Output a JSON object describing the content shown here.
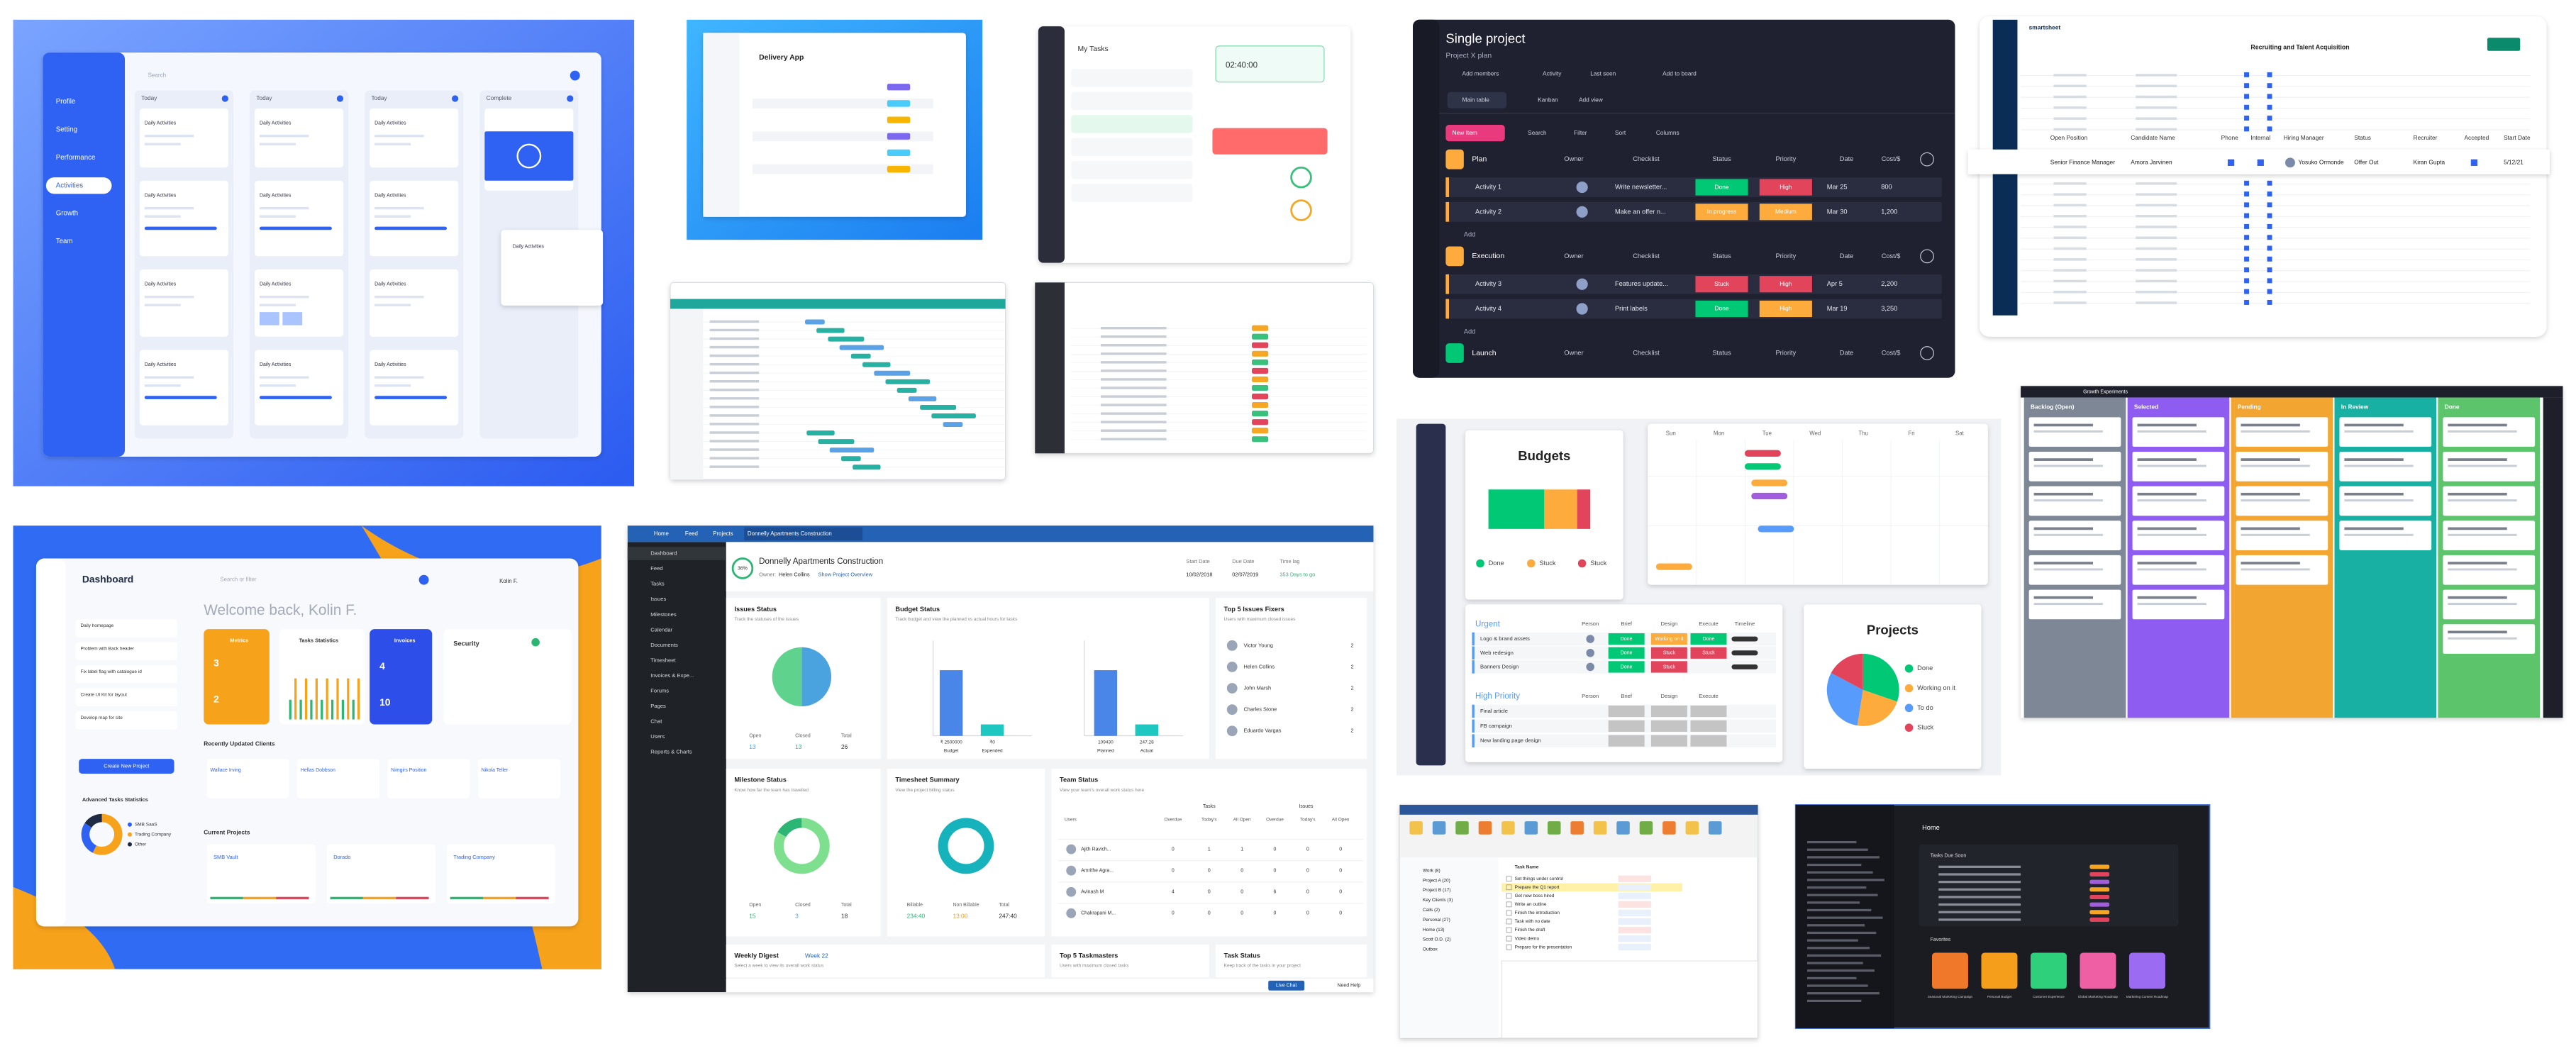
{
  "activities_board": {
    "search": "Search",
    "menu": [
      "Profile",
      "Setting",
      "Performance",
      "Activities",
      "Growth",
      "Team"
    ],
    "columns": [
      "Today",
      "Today",
      "Today",
      "Complete"
    ],
    "card_title": "Daily Activities"
  },
  "delivery_app": {
    "title": "Delivery App"
  },
  "my_tasks": {
    "title": "My Tasks",
    "timer": "02:40:00"
  },
  "single_project": {
    "title": "Single project",
    "subtitle": "Project X plan",
    "toolbar": [
      "Add members",
      "Activity",
      "Last seen",
      "Add to board"
    ],
    "views": [
      "Main table",
      "Kanban",
      "Add view"
    ],
    "actions": [
      "New Item",
      "Search",
      "Filter",
      "Sort",
      "Columns"
    ],
    "columns": [
      "Owner",
      "Checklist",
      "Status",
      "Priority",
      "Date",
      "Cost/$"
    ],
    "add": "Add",
    "groups": [
      {
        "name": "Plan",
        "color": "#fdab3d",
        "rows": [
          {
            "name": "Activity 1",
            "checklist": "Write newsletter...",
            "status": "Done",
            "status_color": "#00c875",
            "priority": "High",
            "priority_color": "#e2445c",
            "date": "Mar 25",
            "cost": "800"
          },
          {
            "name": "Activity 2",
            "checklist": "Make an offer n...",
            "status": "In progress",
            "status_color": "#fdab3d",
            "priority": "Medium",
            "priority_color": "#fdab3d",
            "date": "Mar 30",
            "cost": "1,200"
          }
        ]
      },
      {
        "name": "Execution",
        "color": "#fdab3d",
        "rows": [
          {
            "name": "Activity 3",
            "checklist": "Features update...",
            "status": "Stuck",
            "status_color": "#e2445c",
            "priority": "High",
            "priority_color": "#e2445c",
            "date": "Apr 5",
            "cost": "2,200"
          },
          {
            "name": "Activity 4",
            "checklist": "Print labels",
            "status": "Done",
            "status_color": "#00c875",
            "priority": "High",
            "priority_color": "#fdab3d",
            "date": "Mar 19",
            "cost": "3,250"
          }
        ]
      },
      {
        "name": "Launch",
        "color": "#00c875",
        "rows": []
      }
    ]
  },
  "smartsheet": {
    "brand": "smartsheet",
    "sheet": "Recruiting and Talent Acquisition",
    "columns": [
      "Open Position",
      "Candidate Name",
      "Phone",
      "Internal",
      "Hiring Manager",
      "Status",
      "Recruiter",
      "Accepted",
      "Start Date"
    ],
    "row": {
      "open_position": "Senior Finance Manager",
      "candidate": "Amora Jarvinen",
      "hiring_manager": "Yosuko Ormonde",
      "status": "Offer Out",
      "recruiter": "Kiran Gupta",
      "start_date": "5/12/21"
    }
  },
  "workspace": {
    "budgets": {
      "title": "Budgets",
      "legend": [
        {
          "label": "Done",
          "color": "#00c875"
        },
        {
          "label": "Stuck",
          "color": "#fdab3d"
        },
        {
          "label": "Stuck",
          "color": "#e2445c"
        }
      ]
    },
    "calendar_days": [
      "Sun",
      "Mon",
      "Tue",
      "Wed",
      "Thu",
      "Fri",
      "Sat"
    ],
    "urgent": {
      "title": "Urgent",
      "columns": [
        "Person",
        "Brief",
        "Design",
        "Execute",
        "Timeline"
      ],
      "rows": [
        {
          "name": "Logo & brand assets",
          "cells": [
            {
              "text": "Done",
              "color": "#00c875"
            },
            {
              "text": "Working on it",
              "color": "#fdab3d"
            },
            {
              "text": "Done",
              "color": "#00c875"
            }
          ]
        },
        {
          "name": "Web redesign",
          "cells": [
            {
              "text": "Done",
              "color": "#00c875"
            },
            {
              "text": "Stuck",
              "color": "#e2445c"
            },
            {
              "text": "Stuck",
              "color": "#e2445c"
            }
          ]
        },
        {
          "name": "Banners Design",
          "cells": [
            {
              "text": "Done",
              "color": "#00c875"
            },
            {
              "text": "Stuck",
              "color": "#e2445c"
            }
          ]
        }
      ]
    },
    "high_priority": {
      "title": "High Priority",
      "columns": [
        "Person",
        "Brief",
        "Design",
        "Execute"
      ],
      "rows": [
        "Final article",
        "FB campaign",
        "New landing page design"
      ]
    },
    "projects": {
      "title": "Projects",
      "legend": [
        {
          "label": "Done",
          "color": "#00c875"
        },
        {
          "label": "Working on it",
          "color": "#fdab3d"
        },
        {
          "label": "To do",
          "color": "#579bfc"
        },
        {
          "label": "Stuck",
          "color": "#e2445c"
        }
      ]
    }
  },
  "kanban": {
    "board": "Growth Experiments",
    "columns": [
      {
        "name": "Backlog (Open)",
        "color": "#7d8796"
      },
      {
        "name": "Selected",
        "color": "#8e5cf0"
      },
      {
        "name": "Pending",
        "color": "#f2a531"
      },
      {
        "name": "In Review",
        "color": "#17b0a3"
      },
      {
        "name": "Done",
        "color": "#5cc46b"
      }
    ]
  },
  "dashboard": {
    "title": "Dashboard",
    "search": "Search or filter",
    "welcome": "Welcome back, Kolin F.",
    "user": "Kolin F.",
    "tasks": [
      "Daily homepage",
      "Problem with Back header",
      "Fix label flag with catalogue id",
      "Create UI Kit for layout",
      "Develop map for site"
    ],
    "create": "Create New Project",
    "widgets": {
      "metrics": "Metrics",
      "metric_values": [
        "3",
        "2"
      ],
      "tasks_statistics": "Tasks Statistics",
      "invoices": "Invoices",
      "invoice_values": [
        "4",
        "10"
      ],
      "security": "Security"
    },
    "recent": "Recently Updated Clients",
    "clients": [
      "Wallace Irving",
      "Hellas Dobbson",
      "Nimgirs Position",
      "Nikola Teller"
    ],
    "advanced": "Advanced Tasks Statistics",
    "legend": [
      "SMB SaaS",
      "Trading Company",
      "Other"
    ],
    "current": "Current Projects",
    "projects": [
      "SMB Vault",
      "Dorado",
      "Trading Company"
    ]
  },
  "project_portal": {
    "nav": [
      "Home",
      "Feed",
      "Projects",
      "Donnelly Apartments Construction"
    ],
    "sidebar": [
      "Dashboard",
      "Feed",
      "Tasks",
      "Issues",
      "Milestones",
      "Calendar",
      "Documents",
      "Timesheet",
      "Invoices & Expe...",
      "Forums",
      "Pages",
      "Chat",
      "Users",
      "Reports & Charts"
    ],
    "project": {
      "progress": "36%",
      "name": "Donnelly Apartments Construction",
      "owner_label": "Owner:",
      "owner": "Helen Collins",
      "link": "Show Project Overview",
      "start_label": "Start Date",
      "start": "10/02/2018",
      "due_label": "Due Date",
      "due": "02/07/2019",
      "lag_label": "Time lag",
      "lag": "353 Days to go"
    },
    "issues_status": {
      "title": "Issues Status",
      "subtitle": "Track the statuses of the issues",
      "labels": [
        "Open",
        "Closed",
        "Total"
      ],
      "values": [
        13,
        13,
        26
      ]
    },
    "budget_status": {
      "title": "Budget Status",
      "subtitle": "Track budget and view the planned vs actual hours for tasks",
      "bars": [
        {
          "label": "Budget",
          "value": "₹ 2500000"
        },
        {
          "label": "Expended",
          "value": "₹0"
        }
      ],
      "hours": [
        {
          "label": "Planned",
          "value": "109430"
        },
        {
          "label": "Actual",
          "value": "247.28"
        }
      ]
    },
    "issue_fixers": {
      "title": "Top 5 Issues Fixers",
      "subtitle": "Users with maximum closed issues",
      "people": [
        "Victor Young",
        "Helen Collins",
        "John Marsh",
        "Charles Stone",
        "Eduardo Vargas"
      ],
      "counts": [
        2,
        2,
        2,
        2,
        2
      ]
    },
    "milestone_status": {
      "title": "Milestone Status",
      "subtitle": "Know how far the team has travelled",
      "labels": [
        "Open",
        "Closed",
        "Total"
      ],
      "values": [
        15,
        3,
        18
      ]
    },
    "timesheet": {
      "title": "Timesheet Summary",
      "subtitle": "View the project billing status",
      "labels": [
        "Billable",
        "Non Billable",
        "Total"
      ],
      "values": [
        "234:40",
        "13:00",
        "247:40"
      ]
    },
    "team_status": {
      "title": "Team Status",
      "subtitle": "View your team's overall work status here",
      "groups": [
        "Tasks",
        "Issues"
      ],
      "headers": [
        "Users",
        "Overdue",
        "Today's",
        "All Open",
        "Overdue",
        "Today's",
        "All Open"
      ],
      "rows": [
        [
          "Ajith Ravich...",
          "0",
          "1",
          "1",
          "0",
          "0",
          "0"
        ],
        [
          "Amrithe Agra...",
          "0",
          "0",
          "0",
          "0",
          "0",
          "0"
        ],
        [
          "Avinash M",
          "4",
          "0",
          "0",
          "6",
          "0",
          "0"
        ],
        [
          "Chakrapani M...",
          "0",
          "0",
          "0",
          "0",
          "0",
          "0"
        ]
      ]
    },
    "weekly_digest": {
      "title": "Weekly Digest",
      "week": "Week 22",
      "subtitle": "Select a week to view its overall work status"
    },
    "taskmasters": {
      "title": "Top 5 Taskmasters",
      "subtitle": "Users with maximum closed tasks"
    },
    "task_status": {
      "title": "Task Status",
      "subtitle": "Keep track of the tasks in your project"
    },
    "live_chat": "Live Chat",
    "help": "Need Help"
  },
  "task_manager": {
    "folders": [
      "Work (8)",
      "Project A (20)",
      "Project B (17)",
      "Key Clients (3)",
      "Calls (2)",
      "Personal (27)",
      "Home (13)",
      "Scott O.D. (2)",
      "Outbox"
    ],
    "header": "Task Name",
    "tasks": [
      "Set things under control",
      "Prepare the Q1 report",
      "Get new boss hired",
      "Write an outline",
      "Finish the introduction",
      "Task with no date",
      "Finish the draft",
      "Video demo",
      "Prepare for the presentation"
    ]
  },
  "home_app": {
    "title": "Home",
    "due": "Tasks Due Soon",
    "favorites": "Favorites",
    "tiles": [
      {
        "name": "Seasonal Marketing Campaign",
        "color": "#f0782a"
      },
      {
        "name": "Personal Budget",
        "color": "#f59e1b"
      },
      {
        "name": "Customer Experience",
        "color": "#2fd07c"
      },
      {
        "name": "Global Marketing Roadmap",
        "color": "#ee5fa3"
      },
      {
        "name": "Marketing Content Roadmap",
        "color": "#9b6cf2"
      }
    ]
  }
}
